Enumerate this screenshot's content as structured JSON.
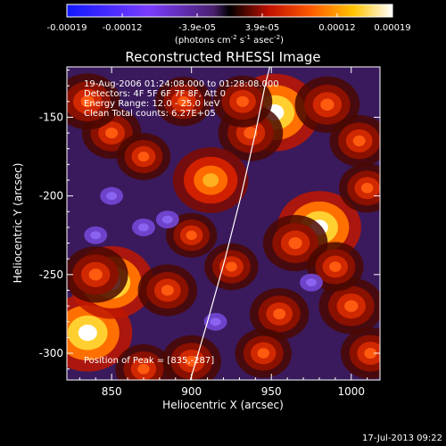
{
  "colorbar": {
    "tick_labels": [
      "-0.00019",
      "-0.00012",
      "-3.9e-05",
      "3.9e-05",
      "0.00012",
      "0.00019"
    ],
    "unit_main": "(photons cm",
    "unit_exp1": "-2",
    "unit_mid": " s",
    "unit_exp2": "-1",
    "unit_end": " asec",
    "unit_exp3": "-2",
    "unit_close": ")",
    "range": [
      -0.00019,
      0.00019
    ]
  },
  "chart_data": {
    "type": "heatmap",
    "title": "Reconstructed RHESSI Image",
    "xlabel": "Heliocentric X (arcsec)",
    "ylabel": "Heliocentric Y (arcsec)",
    "xlim": [
      822,
      1018
    ],
    "ylim": [
      -317,
      -118
    ],
    "x_ticks": [
      850,
      900,
      950,
      1000
    ],
    "y_ticks": [
      -150,
      -200,
      -250,
      -300
    ],
    "colormap": "red-temperature (blue negative to white positive)",
    "annotations": [
      "19-Aug-2006 01:24:08.000 to 01:28:08.000",
      "Detectors: 4F 5F 6F 7F 8F, Att 0",
      "Energy Range: 12.0 - 25.0 keV",
      "Clean    Total counts: 6.27E+05"
    ],
    "peak_label": "Position of Peak = [835,-287]",
    "peak": [
      835,
      -287
    ],
    "limb": [
      [
        899,
        -318
      ],
      [
        910,
        -280
      ],
      [
        921,
        -240
      ],
      [
        931,
        -200
      ],
      [
        940,
        -160
      ],
      [
        946,
        -130
      ],
      [
        949,
        -118
      ]
    ],
    "sources": [
      {
        "x": 952,
        "y": -147,
        "v": 1.0
      },
      {
        "x": 937,
        "y": -160,
        "v": 0.55
      },
      {
        "x": 835,
        "y": -287,
        "v": 1.0
      },
      {
        "x": 850,
        "y": -255,
        "v": 0.9
      },
      {
        "x": 840,
        "y": -250,
        "v": 0.55
      },
      {
        "x": 885,
        "y": -260,
        "v": 0.45
      },
      {
        "x": 980,
        "y": -220,
        "v": 0.9
      },
      {
        "x": 912,
        "y": -190,
        "v": 0.75
      },
      {
        "x": 985,
        "y": -142,
        "v": 0.55
      },
      {
        "x": 1005,
        "y": -165,
        "v": 0.45
      },
      {
        "x": 1010,
        "y": -195,
        "v": 0.4
      },
      {
        "x": 965,
        "y": -230,
        "v": 0.55
      },
      {
        "x": 1000,
        "y": -270,
        "v": 0.55
      },
      {
        "x": 1012,
        "y": -300,
        "v": 0.45
      },
      {
        "x": 955,
        "y": -275,
        "v": 0.45
      },
      {
        "x": 945,
        "y": -300,
        "v": 0.4
      },
      {
        "x": 900,
        "y": -305,
        "v": 0.45
      },
      {
        "x": 870,
        "y": -310,
        "v": 0.4
      },
      {
        "x": 925,
        "y": -245,
        "v": 0.35
      },
      {
        "x": 895,
        "y": -140,
        "v": 0.4
      },
      {
        "x": 850,
        "y": -160,
        "v": 0.45
      },
      {
        "x": 835,
        "y": -140,
        "v": 0.55
      },
      {
        "x": 870,
        "y": -175,
        "v": 0.35
      },
      {
        "x": 900,
        "y": -225,
        "v": 0.3
      },
      {
        "x": 990,
        "y": -245,
        "v": 0.4
      },
      {
        "x": 932,
        "y": -140,
        "v": 0.45
      },
      {
        "x": 885,
        "y": -215,
        "v": -0.3
      },
      {
        "x": 850,
        "y": -200,
        "v": -0.35
      },
      {
        "x": 870,
        "y": -220,
        "v": -0.3
      },
      {
        "x": 840,
        "y": -225,
        "v": -0.3
      },
      {
        "x": 915,
        "y": -280,
        "v": -0.25
      },
      {
        "x": 975,
        "y": -255,
        "v": -0.25
      }
    ]
  },
  "footer": {
    "timestamp": "17-Jul-2013 09:22"
  }
}
